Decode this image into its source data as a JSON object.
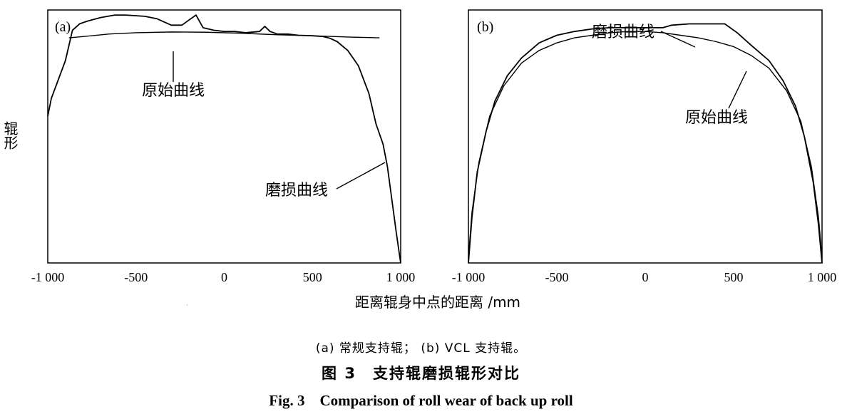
{
  "y_axis_label": "辊形",
  "x_axis_label": "距离辊身中点的距离 /mm",
  "sub_caption": "(a) 常规支持辊； (b) VCL 支持辊。",
  "figure_title_cn": "图 3　支持辊磨损辊形对比",
  "figure_title_en": "Fig. 3　Comparison of roll wear of back up roll",
  "colors": {
    "line": "#000000",
    "background": "#ffffff"
  },
  "chart_data": [
    {
      "type": "line",
      "panel_label": "(a)",
      "xlim": [
        -1000,
        1000
      ],
      "xticks": [
        -1000,
        -500,
        0,
        500,
        1000
      ],
      "xtick_labels": [
        "-1 000",
        "-500",
        "0",
        "500",
        "1 000"
      ],
      "ylim": [
        0,
        100
      ],
      "annotations": [
        {
          "text": "原始曲线",
          "series": 0
        },
        {
          "text": "磨损曲线",
          "series": 1
        }
      ],
      "series": [
        {
          "name": "原始曲线",
          "x": [
            -880,
            -800,
            -650,
            -500,
            -300,
            -100,
            100,
            300,
            500,
            700,
            880
          ],
          "y": [
            89,
            89.5,
            90.5,
            91,
            91.3,
            91.2,
            90.8,
            90.2,
            89.8,
            89.3,
            89
          ]
        },
        {
          "name": "磨损曲线",
          "x": [
            -1000,
            -980,
            -900,
            -860,
            -820,
            -780,
            -700,
            -620,
            -560,
            -450,
            -380,
            -300,
            -240,
            -200,
            -160,
            -120,
            -60,
            0,
            60,
            120,
            200,
            230,
            260,
            300,
            360,
            420,
            500,
            560,
            600,
            640,
            700,
            760,
            820,
            860,
            900,
            925,
            950,
            975,
            1000
          ],
          "y": [
            58,
            65,
            80,
            92,
            94.5,
            95.5,
            97,
            98,
            98,
            97.5,
            96.5,
            94,
            94,
            96,
            98,
            93,
            92,
            91.5,
            91.5,
            91,
            91.5,
            93.5,
            91.5,
            90.5,
            90.5,
            90,
            89.8,
            89.5,
            88.8,
            87.5,
            84,
            78,
            67,
            55,
            47,
            38,
            25,
            12,
            0
          ]
        }
      ]
    },
    {
      "type": "line",
      "panel_label": "(b)",
      "xlim": [
        -1000,
        1000
      ],
      "xticks": [
        -1000,
        -500,
        0,
        500,
        1000
      ],
      "xtick_labels": [
        "-1 000",
        "-500",
        "0",
        "500",
        "1 000"
      ],
      "ylim": [
        0,
        100
      ],
      "annotations": [
        {
          "text": "磨损曲线",
          "series": 1
        },
        {
          "text": "原始曲线",
          "series": 0
        }
      ],
      "series": [
        {
          "name": "原始曲线",
          "x": [
            -1000,
            -980,
            -940,
            -880,
            -800,
            -700,
            -600,
            -500,
            -400,
            -300,
            -200,
            -100,
            0,
            100,
            200,
            300,
            400,
            500,
            600,
            700,
            800,
            880,
            940,
            980,
            1000
          ],
          "y": [
            2,
            20,
            40,
            58,
            70,
            79,
            84,
            87,
            89,
            90,
            91,
            91.5,
            91.5,
            91,
            90,
            89,
            87.5,
            85.5,
            82,
            77,
            68,
            56,
            38,
            18,
            2
          ]
        },
        {
          "name": "磨损曲线",
          "x": [
            -1000,
            -980,
            -950,
            -900,
            -850,
            -780,
            -700,
            -600,
            -500,
            -400,
            -300,
            -200,
            -100,
            0,
            100,
            150,
            250,
            350,
            450,
            520,
            600,
            700,
            780,
            850,
            900,
            950,
            980,
            1000
          ],
          "y": [
            0,
            18,
            36,
            52,
            64,
            74,
            81,
            87,
            90,
            91.5,
            92.5,
            93,
            93,
            93,
            93,
            94,
            94.5,
            94.5,
            94.5,
            91,
            86,
            80,
            72,
            62,
            50,
            32,
            15,
            0
          ]
        }
      ]
    }
  ]
}
